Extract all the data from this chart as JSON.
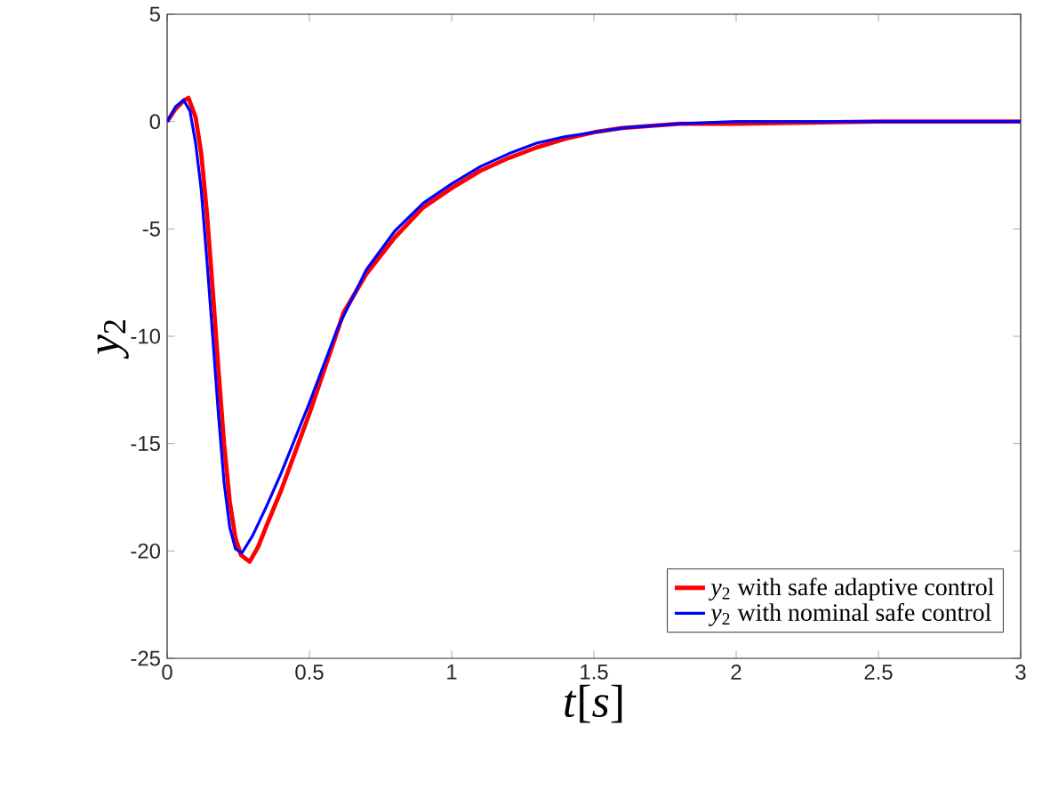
{
  "chart_data": {
    "type": "line",
    "xlabel": "*t*[*s*]",
    "ylabel": "*y*$_{2}$",
    "xlim": [
      0,
      3
    ],
    "ylim": [
      -25,
      5
    ],
    "xticks": [
      0,
      0.5,
      1,
      1.5,
      2,
      2.5,
      3
    ],
    "yticks": [
      -25,
      -20,
      -15,
      -10,
      -5,
      0,
      5
    ],
    "grid": false,
    "legend": "bottom right",
    "line_style": "solid",
    "marker": "none",
    "series": [
      {
        "name": "*y*$_{2}$ with safe adaptive control",
        "color": "#ff0000",
        "x": [
          0,
          0.03,
          0.06,
          0.075,
          0.1,
          0.12,
          0.14,
          0.16,
          0.18,
          0.2,
          0.22,
          0.24,
          0.26,
          0.29,
          0.32,
          0.35,
          0.4,
          0.5,
          0.6,
          0.62,
          0.7,
          0.8,
          0.9,
          1.0,
          1.1,
          1.2,
          1.3,
          1.4,
          1.5,
          1.6,
          1.8,
          2.0,
          2.5,
          3
        ],
        "values": [
          0,
          0.6,
          1.0,
          1.1,
          0.2,
          -1.5,
          -4.3,
          -7.8,
          -11.5,
          -15,
          -17.7,
          -19.4,
          -20.2,
          -20.5,
          -19.8,
          -18.8,
          -17.2,
          -13.6,
          -9.7,
          -8.9,
          -7.1,
          -5.4,
          -4.0,
          -3.1,
          -2.3,
          -1.7,
          -1.2,
          -0.8,
          -0.5,
          -0.3,
          -0.1,
          -0.1,
          0,
          0
        ]
      },
      {
        "name": "*y*$_{2}$ with nominal safe control",
        "color": "#0000ff",
        "x": [
          0,
          0.03,
          0.058,
          0.08,
          0.1,
          0.12,
          0.14,
          0.16,
          0.18,
          0.2,
          0.22,
          0.24,
          0.2625,
          0.3,
          0.35,
          0.4,
          0.5,
          0.6,
          0.7,
          0.8,
          0.9,
          1.0,
          1.1,
          1.2,
          1.3,
          1.4,
          1.5,
          1.6,
          1.8,
          2.0,
          2.5,
          3
        ],
        "values": [
          0,
          0.7,
          1.0,
          0.5,
          -1.0,
          -3.2,
          -6.5,
          -10,
          -13.6,
          -16.8,
          -18.9,
          -19.9,
          -20.1,
          -19.3,
          -17.9,
          -16.4,
          -13.1,
          -9.6,
          -6.9,
          -5.1,
          -3.8,
          -2.9,
          -2.1,
          -1.5,
          -1.0,
          -0.7,
          -0.5,
          -0.3,
          -0.1,
          0,
          0,
          0
        ]
      }
    ]
  }
}
